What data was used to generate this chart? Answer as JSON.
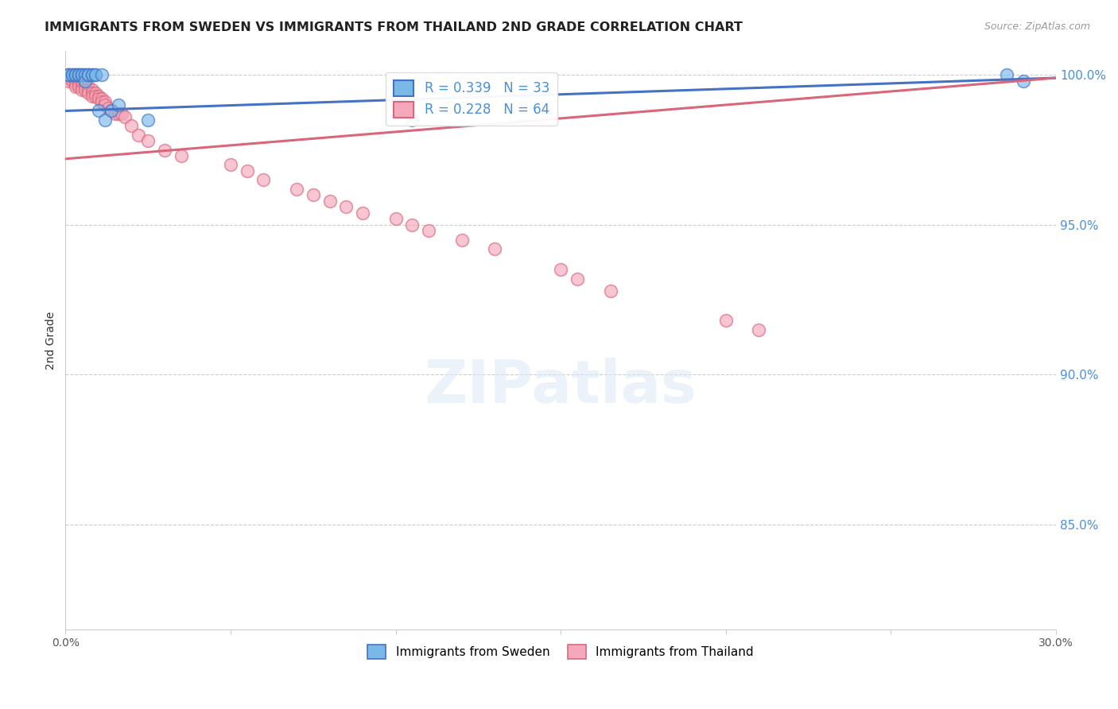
{
  "title": "IMMIGRANTS FROM SWEDEN VS IMMIGRANTS FROM THAILAND 2ND GRADE CORRELATION CHART",
  "source": "Source: ZipAtlas.com",
  "ylabel": "2nd Grade",
  "ylabel_right_labels": [
    "100.0%",
    "95.0%",
    "90.0%",
    "85.0%"
  ],
  "ylabel_right_values": [
    1.0,
    0.95,
    0.9,
    0.85
  ],
  "xmin": 0.0,
  "xmax": 0.3,
  "ymin": 0.815,
  "ymax": 1.008,
  "legend_sweden_r": "R = 0.339",
  "legend_sweden_n": "N = 33",
  "legend_thailand_r": "R = 0.228",
  "legend_thailand_n": "N = 64",
  "sweden_color": "#7ab8e8",
  "thailand_color": "#f5a8bc",
  "sweden_line_color": "#4472c4",
  "thailand_line_color": "#d9667a",
  "background_color": "#ffffff",
  "grid_color": "#cccccc",
  "sweden_points_x": [
    0.001,
    0.001,
    0.002,
    0.002,
    0.003,
    0.003,
    0.003,
    0.004,
    0.004,
    0.004,
    0.005,
    0.005,
    0.005,
    0.006,
    0.006,
    0.006,
    0.007,
    0.007,
    0.007,
    0.008,
    0.008,
    0.009,
    0.009,
    0.01,
    0.011,
    0.012,
    0.014,
    0.016,
    0.025,
    0.1,
    0.105,
    0.285,
    0.29
  ],
  "sweden_points_y": [
    1.0,
    1.0,
    1.0,
    1.0,
    1.0,
    1.0,
    1.0,
    1.0,
    1.0,
    1.0,
    1.0,
    1.0,
    1.0,
    1.0,
    1.0,
    0.998,
    1.0,
    1.0,
    1.0,
    1.0,
    1.0,
    1.0,
    1.0,
    0.988,
    1.0,
    0.985,
    0.988,
    0.99,
    0.985,
    0.99,
    0.985,
    1.0,
    0.998
  ],
  "thailand_points_x": [
    0.001,
    0.001,
    0.001,
    0.001,
    0.002,
    0.002,
    0.002,
    0.003,
    0.003,
    0.003,
    0.003,
    0.004,
    0.004,
    0.004,
    0.005,
    0.005,
    0.005,
    0.005,
    0.006,
    0.006,
    0.006,
    0.007,
    0.007,
    0.007,
    0.008,
    0.008,
    0.008,
    0.009,
    0.009,
    0.01,
    0.01,
    0.011,
    0.011,
    0.012,
    0.012,
    0.013,
    0.014,
    0.015,
    0.016,
    0.017,
    0.018,
    0.02,
    0.022,
    0.025,
    0.03,
    0.035,
    0.05,
    0.055,
    0.06,
    0.07,
    0.075,
    0.08,
    0.085,
    0.09,
    0.1,
    0.105,
    0.11,
    0.12,
    0.13,
    0.15,
    0.155,
    0.165,
    0.2,
    0.21
  ],
  "thailand_points_y": [
    1.0,
    1.0,
    0.999,
    0.998,
    1.0,
    0.999,
    0.998,
    0.999,
    0.998,
    0.997,
    0.996,
    0.998,
    0.997,
    0.996,
    0.998,
    0.997,
    0.996,
    0.995,
    0.997,
    0.996,
    0.995,
    0.996,
    0.995,
    0.994,
    0.995,
    0.994,
    0.993,
    0.994,
    0.993,
    0.993,
    0.992,
    0.992,
    0.991,
    0.991,
    0.99,
    0.989,
    0.988,
    0.987,
    0.987,
    0.987,
    0.986,
    0.983,
    0.98,
    0.978,
    0.975,
    0.973,
    0.97,
    0.968,
    0.965,
    0.962,
    0.96,
    0.958,
    0.956,
    0.954,
    0.952,
    0.95,
    0.948,
    0.945,
    0.942,
    0.935,
    0.932,
    0.928,
    0.918,
    0.915
  ],
  "sweden_trendline": [
    0.988,
    0.999
  ],
  "thailand_trendline": [
    0.972,
    0.999
  ]
}
